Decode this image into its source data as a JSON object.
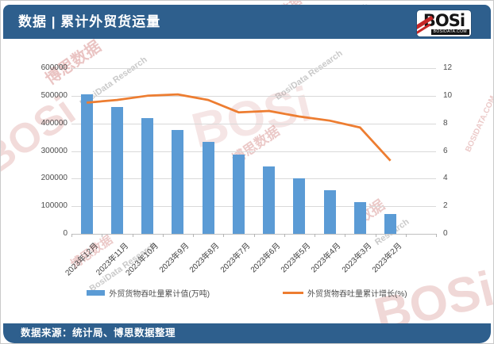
{
  "header": {
    "title": "数据 | 累计外贸货运量",
    "logo": {
      "brand": "BOSi",
      "domain": "BOSIDATA.COM"
    }
  },
  "footer": {
    "source": "数据来源：统计局、博思数据整理"
  },
  "watermarks": [
    "博思数据",
    "BosiData Research",
    "博思数据",
    "Research",
    "BOSi",
    "博思数据",
    "BosiData Research",
    "BOSi",
    "数据",
    "Research",
    "BOSi",
    "博思数据",
    "BosiData Research",
    "BOSIDATA.COM"
  ],
  "colors": {
    "header_bg": "#2E5F8D",
    "bar": "#5B9BD5",
    "line": "#ED7D31",
    "grid": "#D9D9D9",
    "axis_text": "#4D4D4D",
    "watermark_red": "#C0504D",
    "watermark_gray": "#8A8A8A"
  },
  "chart_data": {
    "type": "bar",
    "title": "累计外贸货运量",
    "categories": [
      "2023年12月",
      "2023年11月",
      "2023年10月",
      "2023年9月",
      "2023年8月",
      "2023年7月",
      "2023年6月",
      "2023年5月",
      "2023年4月",
      "2023年3月",
      "2023年2月"
    ],
    "series": [
      {
        "name": "外贸货物吞吐量累计值(万吨)",
        "type": "bar",
        "axis": "left",
        "color": "#5B9BD5",
        "values": [
          505000,
          460000,
          419000,
          376000,
          333000,
          286000,
          244000,
          201000,
          157000,
          114000,
          71000
        ]
      },
      {
        "name": "外贸货物吞吐量累计增长(%)",
        "type": "line",
        "axis": "right",
        "color": "#ED7D31",
        "values": [
          9.5,
          9.7,
          10.0,
          10.1,
          9.7,
          8.8,
          8.9,
          8.5,
          8.2,
          7.7,
          5.3
        ]
      }
    ],
    "left_axis": {
      "min": 0,
      "max": 600000,
      "step": 100000,
      "ticks": [
        "600000",
        "500000",
        "400000",
        "300000",
        "200000",
        "100000",
        "0"
      ]
    },
    "right_axis": {
      "min": 0,
      "max": 12,
      "step": 2,
      "ticks": [
        "12",
        "10",
        "8",
        "6",
        "4",
        "2",
        "0"
      ]
    },
    "legend_position": "bottom",
    "grid": true,
    "empty_trailing_slots": 1
  }
}
